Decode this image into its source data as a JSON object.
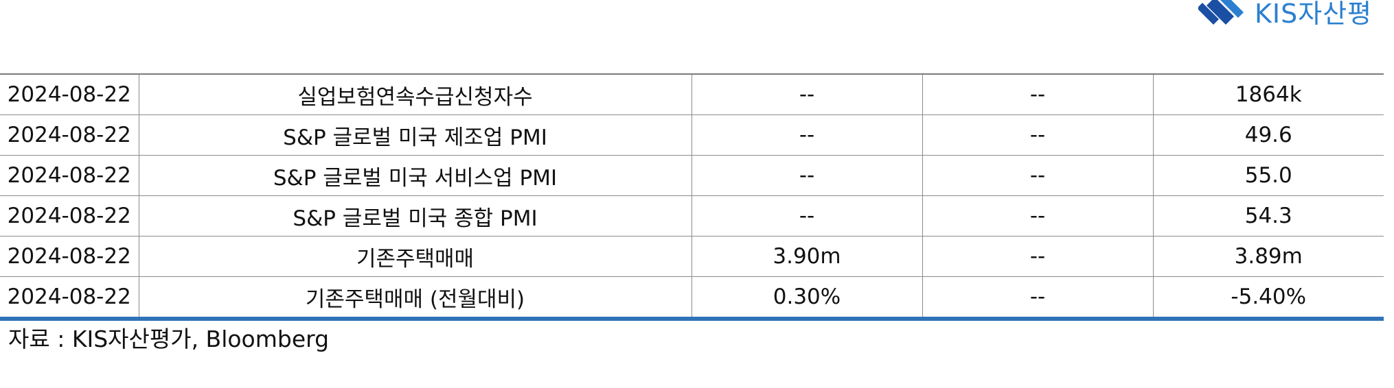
{
  "logo": {
    "text": "KIS자산평"
  },
  "table": {
    "rows": [
      {
        "date": "2024-08-22",
        "indicator": "실업보험연속수급신청자수",
        "col3": "--",
        "col4": "--",
        "col5": "1864k"
      },
      {
        "date": "2024-08-22",
        "indicator": "S&P 글로벌 미국 제조업 PMI",
        "col3": "--",
        "col4": "--",
        "col5": "49.6"
      },
      {
        "date": "2024-08-22",
        "indicator": "S&P 글로벌 미국 서비스업 PMI",
        "col3": "--",
        "col4": "--",
        "col5": "55.0"
      },
      {
        "date": "2024-08-22",
        "indicator": "S&P 글로벌 미국 종합 PMI",
        "col3": "--",
        "col4": "--",
        "col5": "54.3"
      },
      {
        "date": "2024-08-22",
        "indicator": "기존주택매매",
        "col3": "3.90m",
        "col4": "--",
        "col5": "3.89m"
      },
      {
        "date": "2024-08-22",
        "indicator": "기존주택매매 (전월대비)",
        "col3": "0.30%",
        "col4": "--",
        "col5": "-5.40%"
      }
    ]
  },
  "source": "자료 : KIS자산평가, Bloomberg",
  "colors": {
    "logo_blue": "#2a7fd0",
    "logo_dark_blue": "#1a4fa3",
    "table_bottom_rule": "#2f73b8"
  }
}
